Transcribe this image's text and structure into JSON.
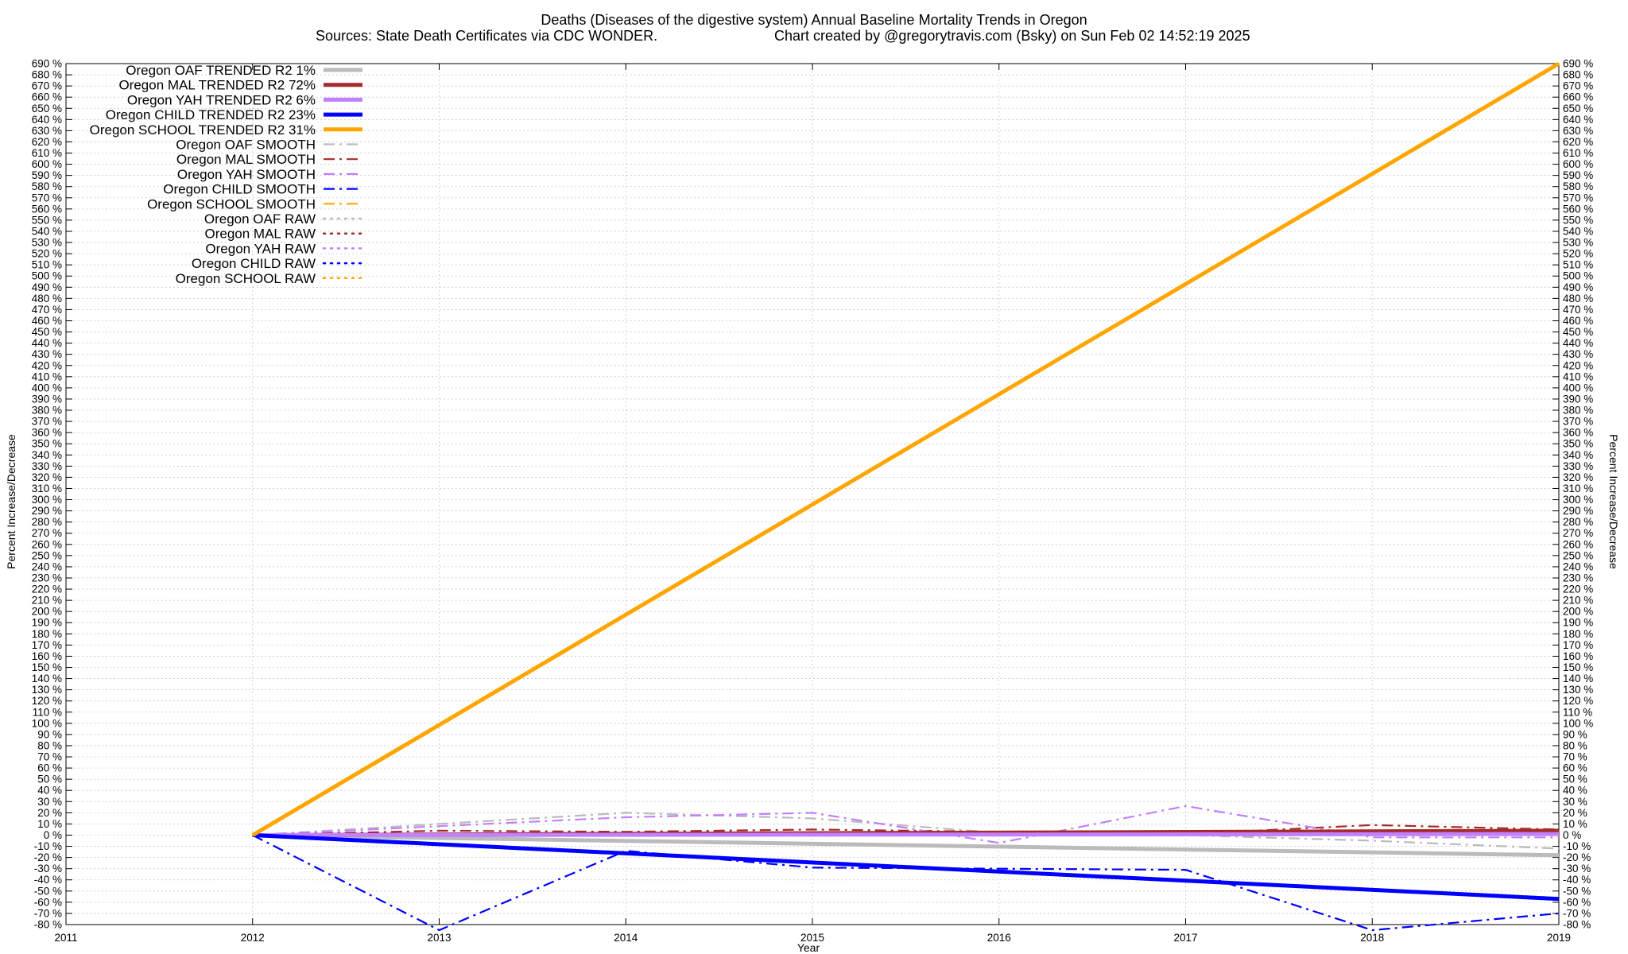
{
  "chart_data": {
    "type": "line",
    "title": "Deaths (Diseases of the digestive system)  Annual Baseline Mortality Trends in Oregon",
    "subtitle_left": "Sources: State Death Certificates via CDC WONDER.",
    "subtitle_right": "Chart created by @gregorytravis.com (Bsky) on Sun Feb 02 14:52:19 2025",
    "xlabel": "Year",
    "ylabel_left": "Percent Increase/Decrease",
    "ylabel_right": "Percent Increase/Decrease",
    "xlim": [
      2011,
      2019
    ],
    "ylim": [
      -80,
      690
    ],
    "x_ticks": [
      "2011",
      "2012",
      "2013",
      "2014",
      "2015",
      "2016",
      "2017",
      "2018",
      "2019"
    ],
    "y_tick_step": 10,
    "y_tick_suffix": " %",
    "grid": true,
    "legend_position": "top-left",
    "series": [
      {
        "name": "Oregon OAF TRENDED R2  1%",
        "style": "solid",
        "color": "#bbbbbb",
        "x": [
          2012,
          2019
        ],
        "values": [
          0,
          -18
        ]
      },
      {
        "name": "Oregon MAL TRENDED R2  72%",
        "style": "solid",
        "color": "#a52a2a",
        "x": [
          2012,
          2019
        ],
        "values": [
          0,
          4
        ]
      },
      {
        "name": "Oregon YAH TRENDED R2   6%",
        "style": "solid",
        "color": "#c080ff",
        "x": [
          2012,
          2019
        ],
        "values": [
          0,
          1
        ]
      },
      {
        "name": "Oregon CHILD TRENDED R2  23%",
        "style": "solid",
        "color": "#0000ff",
        "x": [
          2012,
          2019
        ],
        "values": [
          0,
          -57
        ]
      },
      {
        "name": "Oregon SCHOOL TRENDED R2  31%",
        "style": "solid",
        "color": "#ffa500",
        "x": [
          2012,
          2019
        ],
        "values": [
          0,
          690
        ]
      },
      {
        "name": "Oregon OAF SMOOTH",
        "style": "dashdot",
        "color": "#bbbbbb",
        "x": [
          2012,
          2013,
          2014,
          2015,
          2016,
          2017,
          2018,
          2019
        ],
        "values": [
          0,
          10,
          20,
          15,
          2,
          0,
          -5,
          -12
        ]
      },
      {
        "name": "Oregon MAL SMOOTH",
        "style": "dashdot",
        "color": "#a52a2a",
        "x": [
          2012,
          2013,
          2014,
          2015,
          2016,
          2017,
          2018,
          2019
        ],
        "values": [
          0,
          4,
          3,
          5,
          3,
          1,
          9,
          5
        ]
      },
      {
        "name": "Oregon YAH SMOOTH",
        "style": "dashdot",
        "color": "#c080ff",
        "x": [
          2012,
          2013,
          2014,
          2015,
          2016,
          2017,
          2018,
          2019
        ],
        "values": [
          0,
          8,
          16,
          20,
          -7,
          26,
          -2,
          -2
        ]
      },
      {
        "name": "Oregon CHILD SMOOTH",
        "style": "dashdot",
        "color": "#0000ff",
        "x": [
          2012,
          2013,
          2014,
          2015,
          2016,
          2017,
          2018,
          2019
        ],
        "values": [
          0,
          -85,
          -14,
          -29,
          -30,
          -31,
          -85,
          -70
        ]
      },
      {
        "name": "Oregon SCHOOL SMOOTH",
        "style": "dashdot",
        "color": "#ffa500",
        "x": [],
        "values": []
      },
      {
        "name": "Oregon OAF RAW",
        "style": "dotted",
        "color": "#bbbbbb",
        "x": [],
        "values": []
      },
      {
        "name": "Oregon MAL RAW",
        "style": "dotted",
        "color": "#a52a2a",
        "x": [],
        "values": []
      },
      {
        "name": "Oregon YAH RAW",
        "style": "dotted",
        "color": "#c080ff",
        "x": [],
        "values": []
      },
      {
        "name": "Oregon CHILD RAW",
        "style": "dotted",
        "color": "#0000ff",
        "x": [],
        "values": []
      },
      {
        "name": "Oregon SCHOOL RAW",
        "style": "dotted",
        "color": "#ffa500",
        "x": [],
        "values": []
      }
    ]
  }
}
